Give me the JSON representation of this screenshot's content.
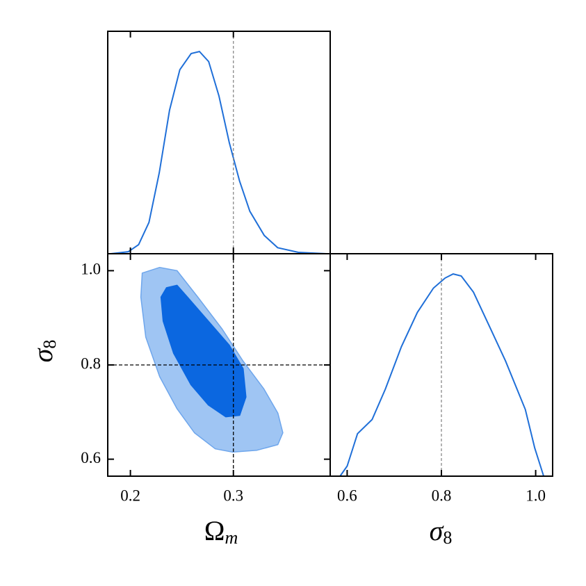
{
  "chart_data": [
    {
      "type": "line",
      "color": "#1f6fd8",
      "x": [
        0.181,
        0.198,
        0.208,
        0.218,
        0.228,
        0.238,
        0.248,
        0.259,
        0.267,
        0.276,
        0.286,
        0.296,
        0.306,
        0.316,
        0.33,
        0.343,
        0.363,
        0.39
      ],
      "values": [
        0,
        0.01,
        0.045,
        0.155,
        0.4,
        0.71,
        0.91,
        0.99,
        1.0,
        0.95,
        0.78,
        0.55,
        0.36,
        0.21,
        0.09,
        0.03,
        0.007,
        0
      ],
      "xlim": [
        0.178,
        0.394
      ],
      "ylim": [
        0,
        1.1
      ],
      "ref": 0.3
    },
    {
      "type": "contour",
      "xlabel": {
        "symbol": "Ω",
        "subscript": "m"
      },
      "ylabel": {
        "symbol": "σ",
        "subscript": "8"
      },
      "regions": [
        {
          "color": "#9fc5f3",
          "edge": "#6ea6ec",
          "x": [
            0.2115,
            0.2284,
            0.2453,
            0.2655,
            0.2892,
            0.3095,
            0.3297,
            0.3432,
            0.348,
            0.3432,
            0.323,
            0.2993,
            0.2824,
            0.2622,
            0.2453,
            0.2284,
            0.2149,
            0.2101
          ],
          "y": [
            0.995,
            1.007,
            1.0,
            0.944,
            0.876,
            0.808,
            0.749,
            0.698,
            0.656,
            0.631,
            0.619,
            0.615,
            0.622,
            0.656,
            0.707,
            0.775,
            0.859,
            0.944
          ]
        },
        {
          "color": "#0b67e0",
          "edge": "#0b67e0",
          "x": [
            0.2351,
            0.2453,
            0.2554,
            0.2757,
            0.296,
            0.3095,
            0.3122,
            0.3061,
            0.2926,
            0.2757,
            0.2588,
            0.2419,
            0.2318,
            0.2297
          ],
          "y": [
            0.964,
            0.969,
            0.944,
            0.893,
            0.842,
            0.792,
            0.732,
            0.693,
            0.69,
            0.715,
            0.758,
            0.825,
            0.893,
            0.944
          ]
        }
      ],
      "xlim": [
        0.178,
        0.394
      ],
      "ylim": [
        0.564,
        1.036
      ],
      "xticks": [
        0.2,
        0.3
      ],
      "yticks": [
        0.6,
        0.8,
        {
          "value": 1,
          "label": "1.0"
        }
      ],
      "ref_x": 0.3,
      "ref_y": 0.8
    },
    {
      "type": "line",
      "color": "#1f6fd8",
      "xlabel": {
        "symbol": "σ",
        "subscript": "8"
      },
      "x": [
        0.585,
        0.6,
        0.622,
        0.653,
        0.681,
        0.715,
        0.749,
        0.783,
        0.808,
        0.825,
        0.842,
        0.868,
        0.902,
        0.936,
        0.978,
        0.998,
        1.017
      ],
      "values": [
        0,
        0.05,
        0.21,
        0.28,
        0.43,
        0.64,
        0.81,
        0.93,
        0.98,
        1.0,
        0.99,
        0.91,
        0.74,
        0.57,
        0.33,
        0.14,
        0
      ],
      "xlim": [
        0.564,
        1.036
      ],
      "ylim": [
        0,
        1.1
      ],
      "xticks": [
        0.6,
        0.8,
        {
          "value": 1,
          "label": "1.0"
        }
      ],
      "ref": 0.8
    }
  ]
}
